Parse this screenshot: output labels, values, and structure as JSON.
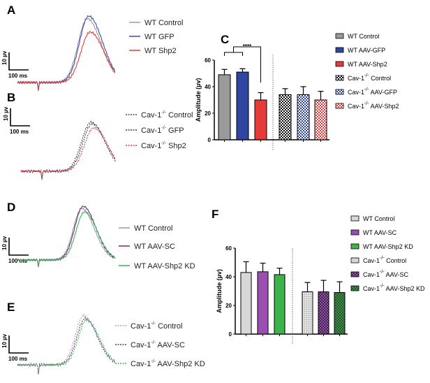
{
  "panels": {
    "A": {
      "label": "A",
      "scale_v": "10 µv",
      "scale_t": "100 ms",
      "legend": [
        {
          "name": "WT Control",
          "color": "#9a9a9a",
          "dash": false,
          "peak": 48
        },
        {
          "name": "WT GFP",
          "color": "#3b4aa8",
          "dash": false,
          "peak": 50
        },
        {
          "name": "WT Shp2",
          "color": "#e53b3b",
          "dash": false,
          "peak": 38
        }
      ]
    },
    "B": {
      "label": "B",
      "scale_v": "10 µv",
      "scale_t": "100 ms",
      "legend": [
        {
          "name": "Cav-1",
          "sup": "-/-",
          "suffix": " Control",
          "color": "#444",
          "dash": true,
          "peak": 35
        },
        {
          "name": "Cav-1",
          "sup": "-/-",
          "suffix": " GFP",
          "color": "#333a66",
          "dash": true,
          "peak": 34
        },
        {
          "name": "Cav-1",
          "sup": "-/-",
          "suffix": " Shp2",
          "color": "#e53b3b",
          "dash": true,
          "peak": 31
        }
      ]
    },
    "D": {
      "label": "D",
      "scale_v": "10 µv",
      "scale_t": "100 ms",
      "legend": [
        {
          "name": "WT Control",
          "color": "#9a9a9a",
          "dash": false,
          "peak": 46
        },
        {
          "name": "WT AAV-SC",
          "color": "#6a2c8a",
          "dash": false,
          "peak": 48
        },
        {
          "name": "WT AAV-Shp2 KD",
          "color": "#3cb44b",
          "dash": false,
          "peak": 43
        }
      ]
    },
    "E": {
      "label": "E",
      "scale_v": "10 µv",
      "scale_t": "100 ms",
      "legend": [
        {
          "name": "Cav-1",
          "sup": "-/-",
          "suffix": " Control",
          "color": "#aaa",
          "dash": true,
          "peak": 32
        },
        {
          "name": "Cav-1",
          "sup": "-/-",
          "suffix": " AAV-SC",
          "color": "#6a2c8a",
          "dash": true,
          "peak": 30
        },
        {
          "name": "Cav-1",
          "sup": "-/-",
          "suffix": " AAV-Shp2 KD",
          "color": "#3cb44b",
          "dash": true,
          "peak": 29
        }
      ]
    }
  },
  "chart_data": [
    {
      "panel": "C",
      "type": "bar",
      "ylabel": "Amplitude (µv)",
      "ylim": [
        0,
        60
      ],
      "yticks": [
        0,
        20,
        40,
        60
      ],
      "significance": "****",
      "series": [
        {
          "name": "WT Control",
          "value": 49,
          "error": 4,
          "color": "#9a9a9a",
          "pattern": "solid"
        },
        {
          "name": "WT AAV-GFP",
          "value": 51,
          "error": 2.5,
          "color": "#2f45a0",
          "pattern": "solid"
        },
        {
          "name": "WT AAV-Shp2",
          "value": 30,
          "error": 5.5,
          "color": "#e53b3b",
          "pattern": "solid"
        },
        {
          "name": "Cav-1",
          "sup": "-/-",
          "suffix": "  Control",
          "value": 34,
          "error": 4.5,
          "color": "#111111",
          "pattern": "checker"
        },
        {
          "name": "Cav-1",
          "sup": "-/-",
          "suffix": " AAV-GFP",
          "value": 34,
          "error": 6,
          "color": "#2f45a0",
          "pattern": "checker"
        },
        {
          "name": "Cav-1",
          "sup": "-/-",
          "suffix": " AAV-Shp2",
          "value": 30,
          "error": 6.5,
          "color": "#e53b3b",
          "pattern": "checker"
        }
      ]
    },
    {
      "panel": "F",
      "type": "bar",
      "ylabel": "Amplitude (µv)",
      "ylim": [
        0,
        60
      ],
      "yticks": [
        0,
        20,
        40,
        60
      ],
      "series": [
        {
          "name": "WT Control",
          "value": 43,
          "error": 7.5,
          "color": "#d8d8d8",
          "pattern": "solid"
        },
        {
          "name": "WT AAV-SC",
          "value": 43.5,
          "error": 6,
          "color": "#9b4fb0",
          "pattern": "solid"
        },
        {
          "name": "WT AAV-Shp2 KD",
          "value": 41.5,
          "error": 4.5,
          "color": "#3cb44b",
          "pattern": "solid"
        },
        {
          "name": "Cav-1",
          "sup": "-/-",
          "suffix": " Control",
          "value": 29.5,
          "error": 6.5,
          "color": "#cfcfcf",
          "pattern": "dots"
        },
        {
          "name": "Cav-1",
          "sup": "-/-",
          "suffix": " AAV-SC",
          "value": 29.5,
          "error": 8,
          "color": "#5a2a6a",
          "pattern": "checker"
        },
        {
          "name": "Cav-1",
          "sup": "-/-",
          "suffix": " AAV-Shp2 KD",
          "value": 29,
          "error": 7.5,
          "color": "#2e6b35",
          "pattern": "checker"
        }
      ]
    }
  ]
}
